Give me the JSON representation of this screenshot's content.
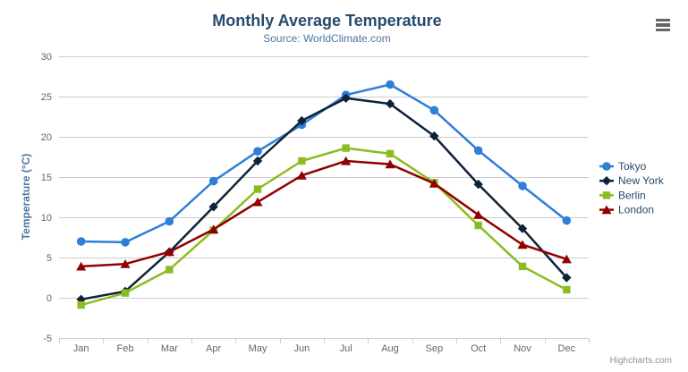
{
  "chart_data": {
    "type": "line",
    "title": "Monthly Average Temperature",
    "subtitle": "Source: WorldClimate.com",
    "categories": [
      "Jan",
      "Feb",
      "Mar",
      "Apr",
      "May",
      "Jun",
      "Jul",
      "Aug",
      "Sep",
      "Oct",
      "Nov",
      "Dec"
    ],
    "series": [
      {
        "name": "Tokyo",
        "color": "#2f7ed8",
        "marker": "circle",
        "values": [
          7.0,
          6.9,
          9.5,
          14.5,
          18.2,
          21.5,
          25.2,
          26.5,
          23.3,
          18.3,
          13.9,
          9.6
        ]
      },
      {
        "name": "New York",
        "color": "#0d233a",
        "marker": "diamond",
        "values": [
          -0.2,
          0.8,
          5.7,
          11.3,
          17.0,
          22.0,
          24.8,
          24.1,
          20.1,
          14.1,
          8.6,
          2.5
        ]
      },
      {
        "name": "Berlin",
        "color": "#8bbc21",
        "marker": "square",
        "values": [
          -0.9,
          0.6,
          3.5,
          8.4,
          13.5,
          17.0,
          18.6,
          17.9,
          14.3,
          9.0,
          3.9,
          1.0
        ]
      },
      {
        "name": "London",
        "color": "#910000",
        "marker": "triangle",
        "values": [
          3.9,
          4.2,
          5.7,
          8.5,
          11.9,
          15.2,
          17.0,
          16.6,
          14.2,
          10.3,
          6.6,
          4.8
        ]
      }
    ],
    "xlabel": "",
    "ylabel": "Temperature (°C)",
    "ylim": [
      -5,
      30
    ],
    "ytick_step": 5,
    "yticks": [
      -5,
      0,
      5,
      10,
      15,
      20,
      25,
      30
    ],
    "grid": true,
    "legend_position": "right",
    "credits": "Highcharts.com"
  },
  "icons": {
    "export_menu": "hamburger-icon"
  },
  "colors": {
    "title_text": "#274b6d",
    "subtitle_text": "#4d759e",
    "axis_label_text": "#666666",
    "grid_line": "#cccccc",
    "axis_line": "#c0d0e0",
    "legend_text": "#274b6d",
    "credits_text": "#909090",
    "export_icon": "#666666"
  }
}
